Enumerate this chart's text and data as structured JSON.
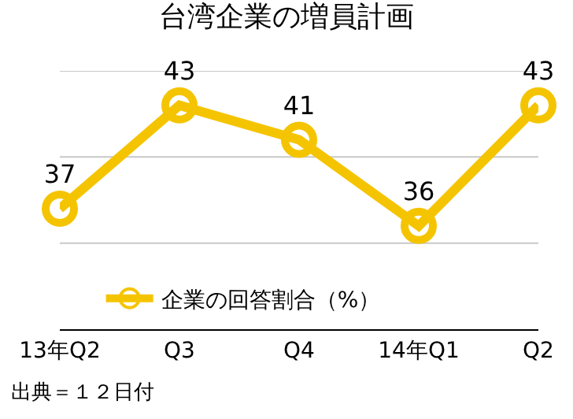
{
  "chart_data": {
    "type": "line",
    "title": "台湾企業の増員計画",
    "categories": [
      "13年Q2",
      "Q3",
      "Q4",
      "14年Q1",
      "Q2"
    ],
    "series": [
      {
        "name": "企業の回答割合（%）",
        "color": "#f5c400",
        "values": [
          37,
          43,
          41,
          36,
          43
        ]
      }
    ],
    "ylim": [
      30,
      45
    ],
    "ref_lines": [
      {
        "axis": "y",
        "value": 35,
        "color": "#c8c8c8"
      },
      {
        "axis": "y",
        "value": 40,
        "color": "#c8c8c8"
      },
      {
        "axis": "y",
        "value": 45,
        "color": "#c8c8c8"
      }
    ],
    "tick_labels": "x",
    "legend": "bottom left",
    "marker": "circle",
    "line_style": "solid",
    "data_labels": true,
    "annotations": [
      "出典＝１２日付"
    ]
  }
}
